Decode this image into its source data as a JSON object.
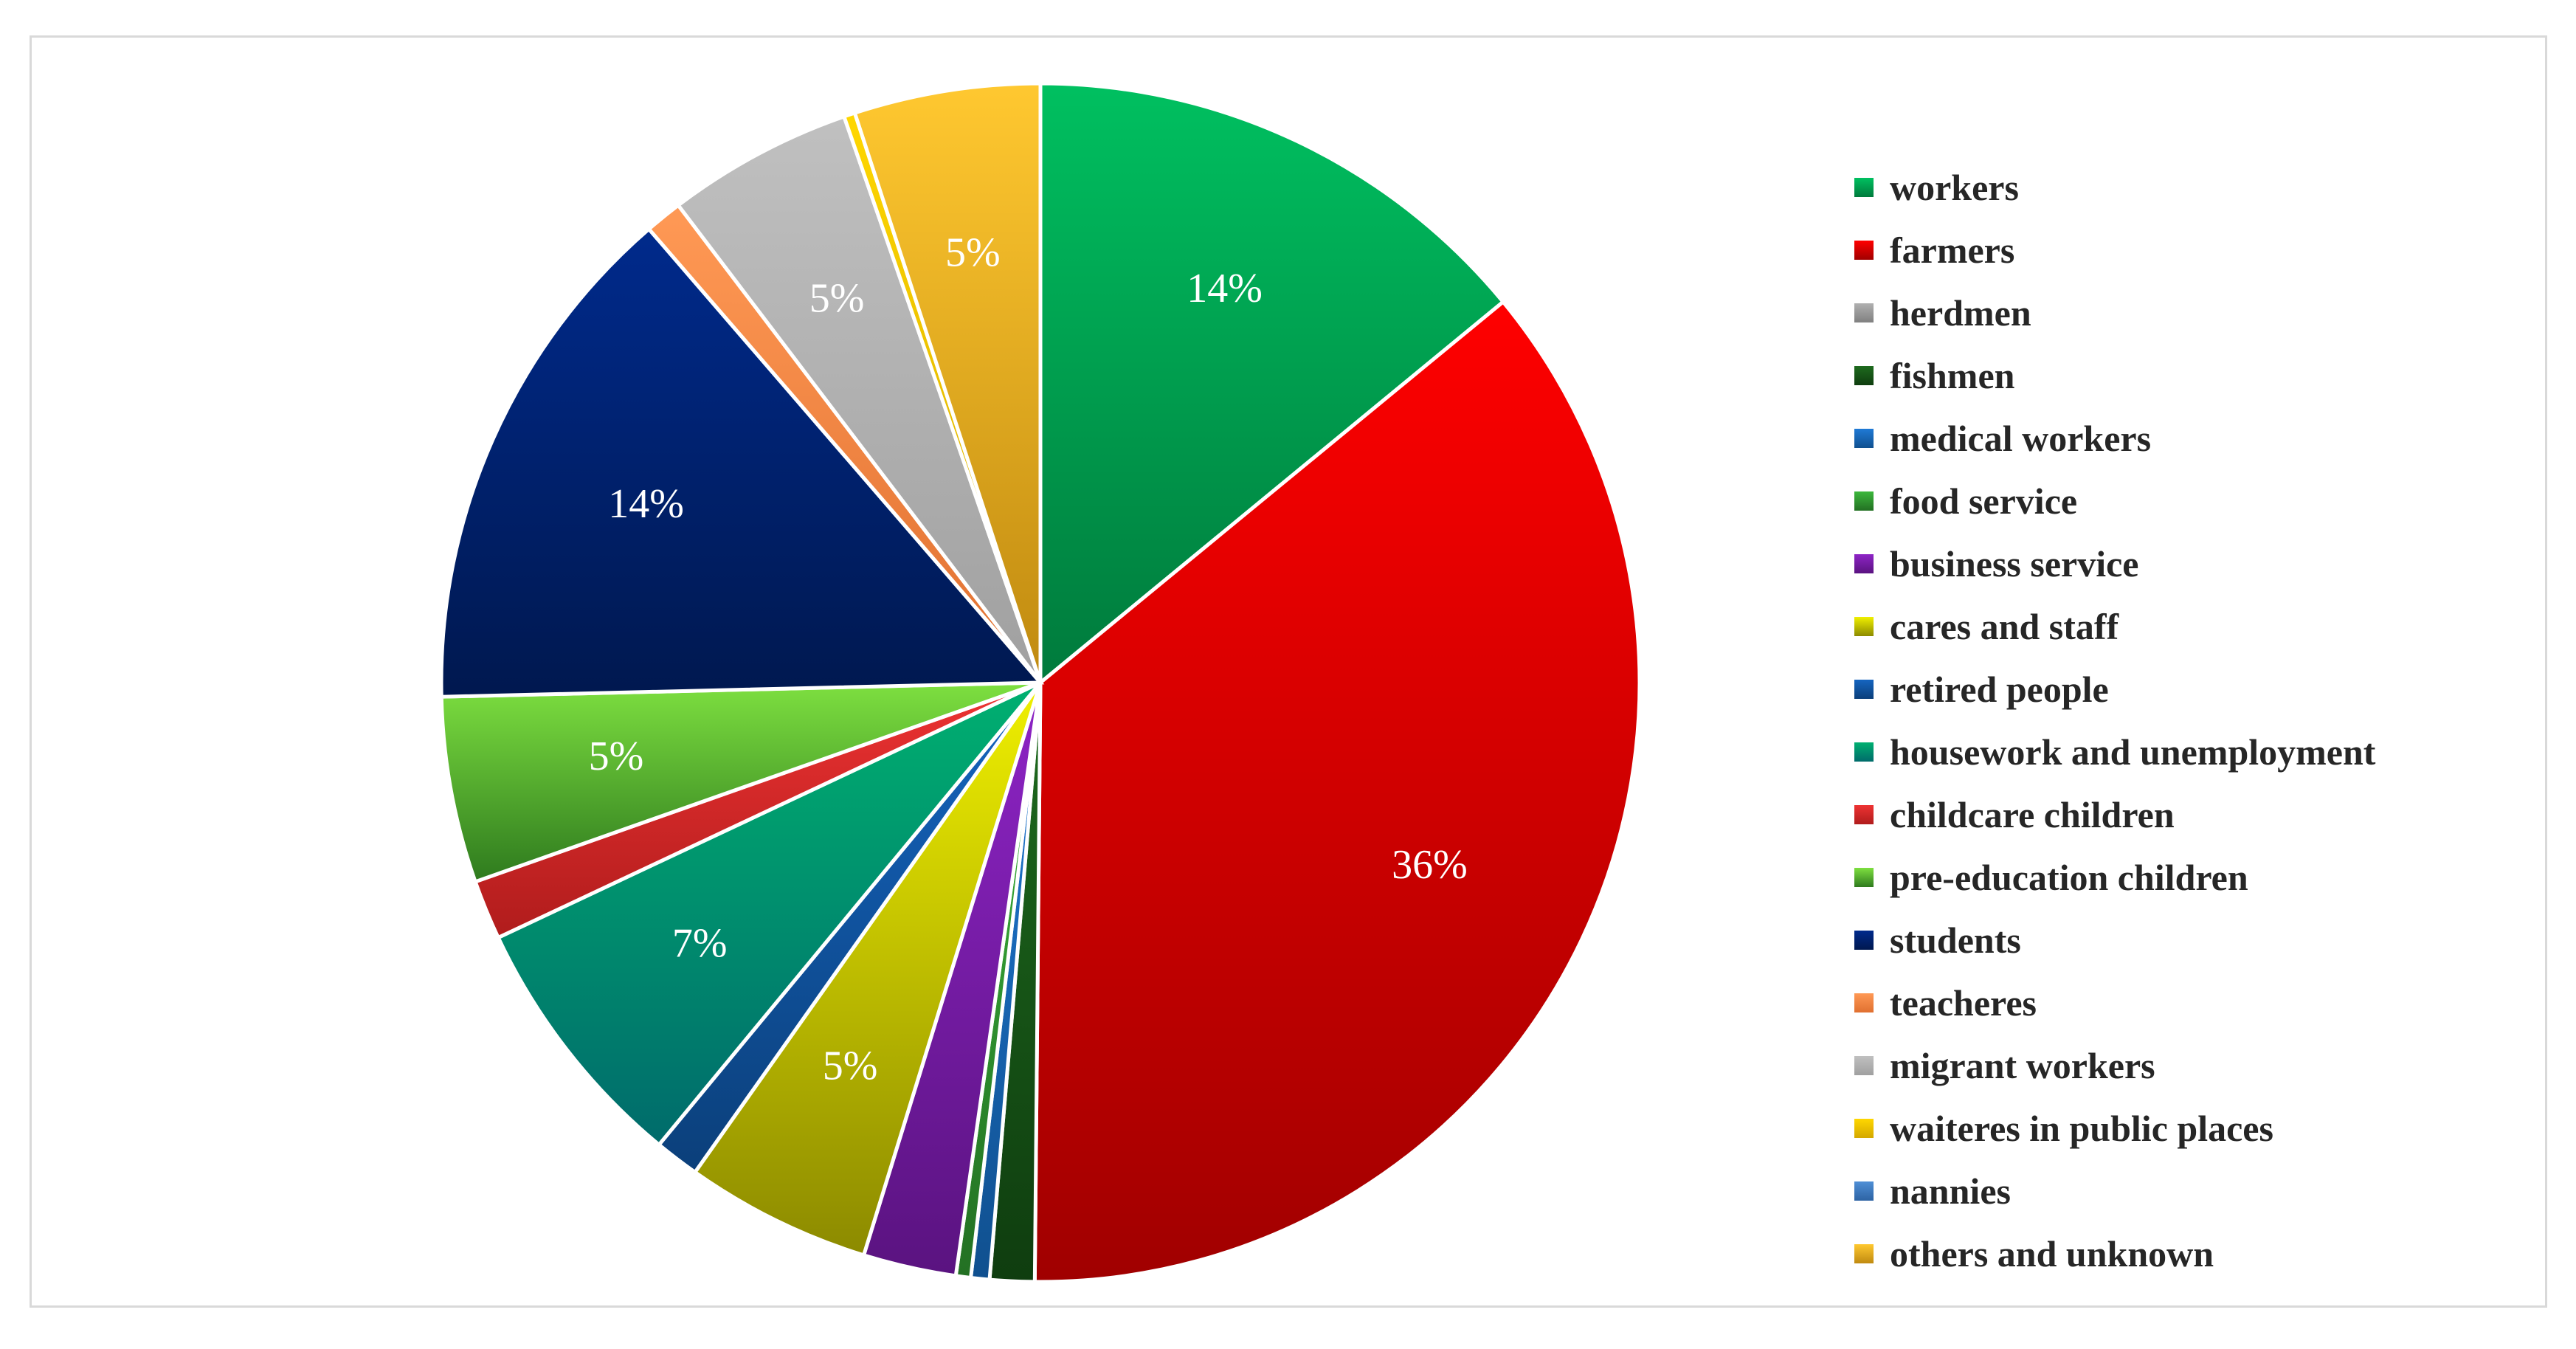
{
  "chart_data": {
    "type": "pie",
    "title": "",
    "start_angle_deg": 0,
    "direction": "clockwise",
    "slices": [
      {
        "name": "workers",
        "value": 14,
        "label": "14%",
        "color": "#00c060",
        "color_dark": "#007a3c"
      },
      {
        "name": "farmers",
        "value": 36,
        "label": "36%",
        "color": "#ff0000",
        "color_dark": "#a00000"
      },
      {
        "name": "herdmen",
        "value": 0,
        "label": "",
        "color": "#b0b0b0",
        "color_dark": "#808080"
      },
      {
        "name": "fishmen",
        "value": 1.2,
        "label": "",
        "color": "#1e6b1e",
        "color_dark": "#0f3d0f"
      },
      {
        "name": "medical workers",
        "value": 0.5,
        "label": "",
        "color": "#1f7ad6",
        "color_dark": "#10508f"
      },
      {
        "name": "food service",
        "value": 0.4,
        "label": "",
        "color": "#3cb83c",
        "color_dark": "#237023"
      },
      {
        "name": "business service",
        "value": 2.5,
        "label": "",
        "color": "#8e24c6",
        "color_dark": "#5a1380"
      },
      {
        "name": "cares and staff",
        "value": 5,
        "label": "5%",
        "color": "#f0f000",
        "color_dark": "#8c8a00"
      },
      {
        "name": "retired people",
        "value": 1.2,
        "label": "",
        "color": "#1565c0",
        "color_dark": "#0b3f7a"
      },
      {
        "name": "housework and unemployment",
        "value": 7,
        "label": "7%",
        "color": "#00b070",
        "color_dark": "#006b6b"
      },
      {
        "name": "childcare children",
        "value": 1.6,
        "label": "",
        "color": "#ee3333",
        "color_dark": "#b01c1c"
      },
      {
        "name": "pre-education children",
        "value": 5,
        "label": "5%",
        "color": "#7ee040",
        "color_dark": "#2e7a1e"
      },
      {
        "name": "students",
        "value": 14,
        "label": "14%",
        "color": "#002a8c",
        "color_dark": "#00184f"
      },
      {
        "name": "teacheres",
        "value": 1,
        "label": "",
        "color": "#ff9955",
        "color_dark": "#e07030"
      },
      {
        "name": "migrant workers",
        "value": 5,
        "label": "5%",
        "color": "#c0c0c0",
        "color_dark": "#a0a0a0"
      },
      {
        "name": "waiteres in public places",
        "value": 0.3,
        "label": "",
        "color": "#ffd700",
        "color_dark": "#d4a800"
      },
      {
        "name": "nannies",
        "value": 0,
        "label": "",
        "color": "#4f8fd6",
        "color_dark": "#2d63a3"
      },
      {
        "name": "others and unknown",
        "value": 5,
        "label": "5%",
        "color": "#ffc830",
        "color_dark": "#c08a10"
      }
    ],
    "legend_position": "right"
  }
}
